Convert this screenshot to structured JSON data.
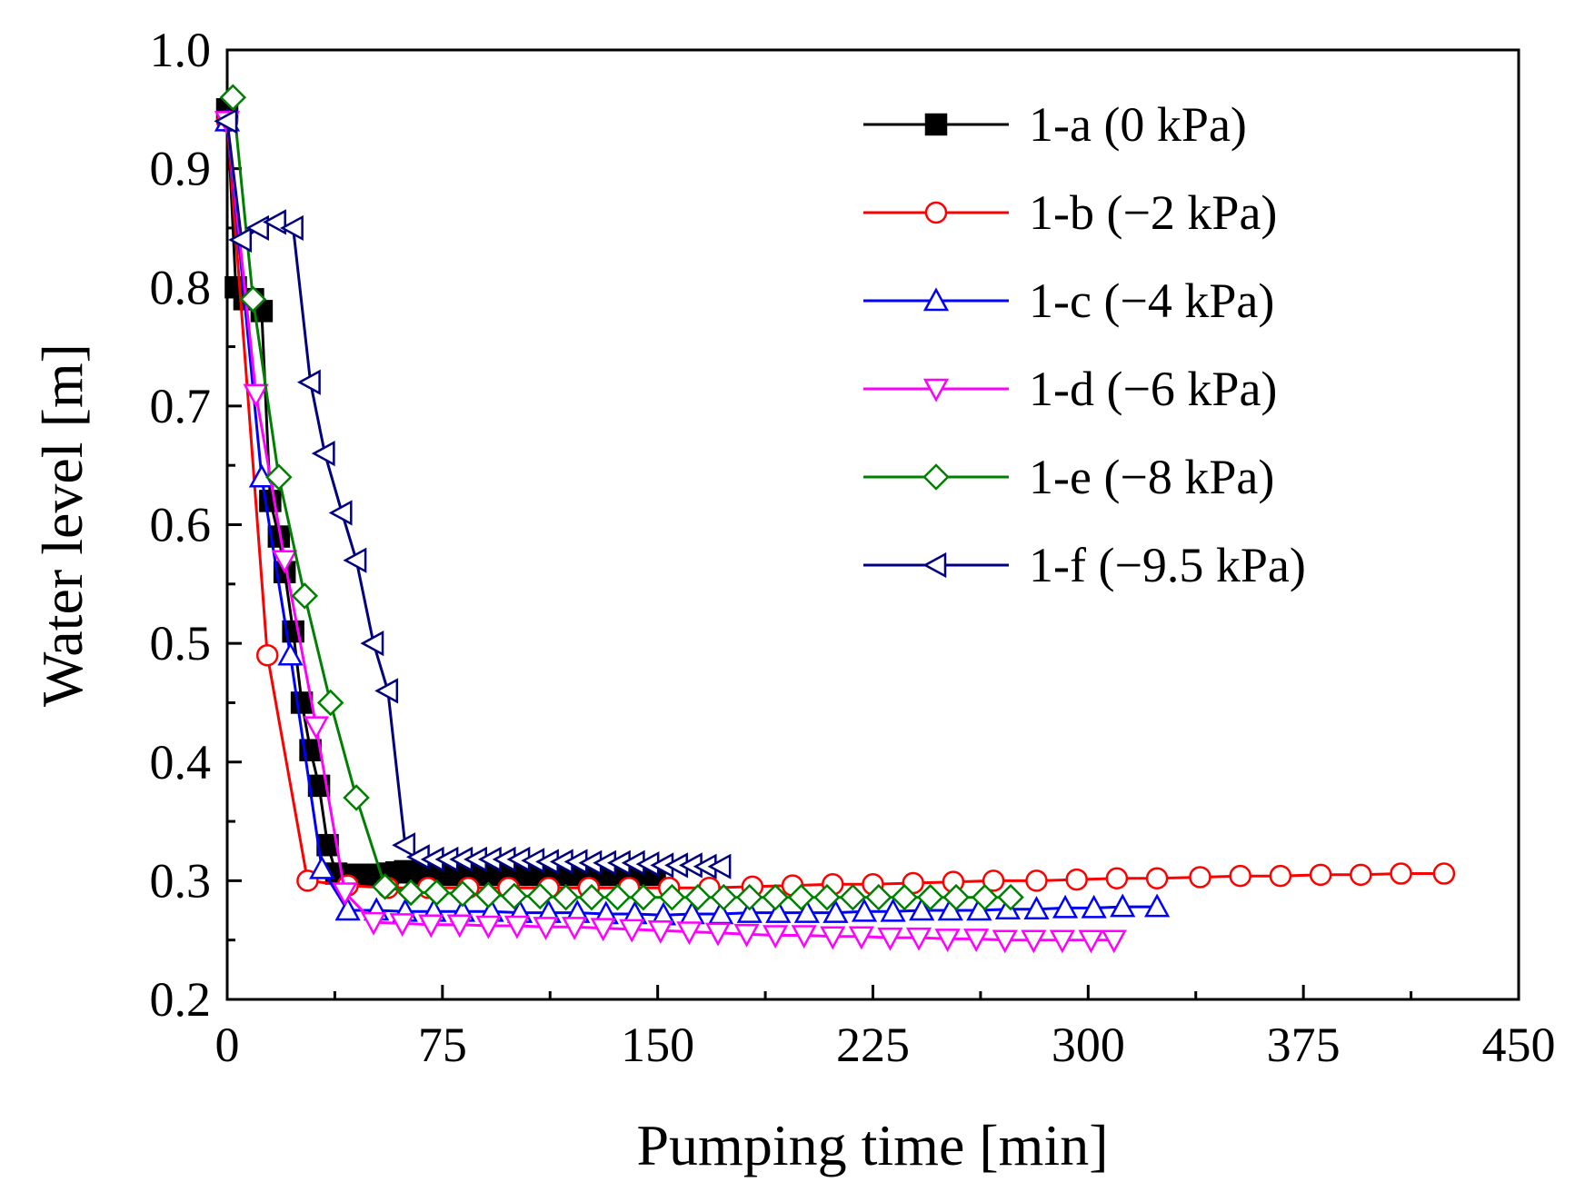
{
  "chart_data": {
    "type": "line",
    "title": "",
    "xlabel": "Pumping time [min]",
    "ylabel": "Water level [m]",
    "xlim": [
      0,
      450
    ],
    "ylim": [
      0.2,
      1.0
    ],
    "xticks": [
      0,
      75,
      150,
      225,
      300,
      375,
      450
    ],
    "xtick_labels": [
      "0",
      "75",
      "150",
      "225",
      "300",
      "375",
      "450"
    ],
    "yticks": [
      0.2,
      0.3,
      0.4,
      0.5,
      0.6,
      0.7,
      0.8,
      0.9,
      1.0
    ],
    "ytick_labels": [
      "0.2",
      "0.3",
      "0.4",
      "0.5",
      "0.6",
      "0.7",
      "0.8",
      "0.9",
      "1.0"
    ],
    "grid": false,
    "legend_position": "top-right",
    "series": [
      {
        "name": "1-a (0 kPa)",
        "color": "#000000",
        "marker": "square-filled",
        "x": [
          0,
          3,
          6,
          9,
          12,
          15,
          18,
          20,
          23,
          26,
          29,
          32,
          35,
          38,
          41,
          44,
          47,
          50,
          53,
          56,
          59,
          62,
          65,
          68,
          71,
          74,
          77,
          80,
          83,
          86,
          89,
          92,
          95,
          98,
          101,
          104,
          107,
          110,
          113,
          116,
          119,
          122,
          125,
          128,
          131,
          134,
          137,
          140,
          143,
          146,
          149
        ],
        "y": [
          0.95,
          0.8,
          0.79,
          0.79,
          0.78,
          0.62,
          0.59,
          0.56,
          0.51,
          0.45,
          0.41,
          0.38,
          0.33,
          0.306,
          0.305,
          0.305,
          0.305,
          0.305,
          0.305,
          0.306,
          0.307,
          0.308,
          0.307,
          0.306,
          0.305,
          0.305,
          0.305,
          0.305,
          0.305,
          0.305,
          0.305,
          0.305,
          0.305,
          0.305,
          0.305,
          0.305,
          0.305,
          0.305,
          0.305,
          0.305,
          0.305,
          0.305,
          0.305,
          0.305,
          0.305,
          0.305,
          0.305,
          0.305,
          0.305,
          0.305,
          0.305
        ]
      },
      {
        "name": "1-b (−2 kPa)",
        "color": "#ff0000",
        "marker": "circle-open",
        "x": [
          0,
          14,
          28,
          42,
          56,
          70,
          84,
          98,
          112,
          126,
          140,
          154,
          168,
          183,
          197,
          211,
          225,
          239,
          253,
          267,
          282,
          296,
          310,
          324,
          339,
          353,
          367,
          381,
          395,
          409,
          424
        ],
        "y": [
          0.94,
          0.49,
          0.3,
          0.296,
          0.294,
          0.294,
          0.294,
          0.294,
          0.294,
          0.294,
          0.294,
          0.294,
          0.294,
          0.295,
          0.296,
          0.297,
          0.297,
          0.298,
          0.299,
          0.3,
          0.3,
          0.301,
          0.302,
          0.302,
          0.303,
          0.304,
          0.304,
          0.305,
          0.305,
          0.306,
          0.306
        ]
      },
      {
        "name": "1-c (−4 kPa)",
        "color": "#0000ff",
        "marker": "triangle-up-open",
        "x": [
          0,
          12,
          22,
          33,
          42,
          52,
          62,
          72,
          82,
          92,
          102,
          112,
          122,
          132,
          142,
          152,
          162,
          172,
          182,
          192,
          202,
          212,
          222,
          232,
          242,
          252,
          262,
          272,
          282,
          292,
          302,
          312,
          324
        ],
        "y": [
          0.94,
          0.64,
          0.49,
          0.31,
          0.275,
          0.275,
          0.274,
          0.274,
          0.274,
          0.274,
          0.273,
          0.273,
          0.273,
          0.272,
          0.272,
          0.271,
          0.272,
          0.272,
          0.273,
          0.273,
          0.273,
          0.273,
          0.274,
          0.274,
          0.275,
          0.275,
          0.275,
          0.276,
          0.276,
          0.277,
          0.277,
          0.278,
          0.278
        ]
      },
      {
        "name": "1-d (−6 kPa)",
        "color": "#ff00ff",
        "marker": "triangle-down-open",
        "x": [
          0,
          10,
          20,
          31,
          41,
          51,
          61,
          71,
          81,
          91,
          101,
          111,
          121,
          131,
          141,
          151,
          161,
          171,
          181,
          191,
          201,
          211,
          221,
          231,
          241,
          251,
          261,
          271,
          281,
          291,
          301,
          309
        ],
        "y": [
          0.94,
          0.71,
          0.57,
          0.43,
          0.29,
          0.265,
          0.264,
          0.263,
          0.263,
          0.262,
          0.262,
          0.261,
          0.261,
          0.26,
          0.259,
          0.258,
          0.257,
          0.256,
          0.255,
          0.254,
          0.254,
          0.253,
          0.253,
          0.252,
          0.252,
          0.251,
          0.251,
          0.25,
          0.25,
          0.25,
          0.25,
          0.25
        ]
      },
      {
        "name": "1-e (−8 kPa)",
        "color": "#008000",
        "marker": "diamond-open",
        "x": [
          2,
          9,
          18,
          27,
          36,
          45,
          55,
          64,
          73,
          82,
          91,
          100,
          109,
          118,
          127,
          136,
          145,
          155,
          164,
          173,
          182,
          191,
          200,
          209,
          218,
          227,
          236,
          245,
          254,
          264,
          273
        ],
        "y": [
          0.96,
          0.79,
          0.64,
          0.54,
          0.45,
          0.37,
          0.295,
          0.29,
          0.29,
          0.289,
          0.288,
          0.287,
          0.287,
          0.286,
          0.286,
          0.286,
          0.286,
          0.286,
          0.286,
          0.286,
          0.286,
          0.286,
          0.286,
          0.286,
          0.286,
          0.286,
          0.286,
          0.286,
          0.286,
          0.286,
          0.286
        ]
      },
      {
        "name": "1-f (−9.5 kPa)",
        "color": "#000080",
        "marker": "triangle-left-open",
        "x": [
          0,
          5,
          11,
          17,
          23,
          29,
          34,
          40,
          45,
          51,
          56,
          62,
          67,
          72,
          77,
          82,
          87,
          92,
          97,
          102,
          107,
          112,
          117,
          122,
          127,
          132,
          137,
          142,
          147,
          152,
          157,
          162,
          167,
          172
        ],
        "y": [
          0.94,
          0.84,
          0.85,
          0.855,
          0.85,
          0.72,
          0.66,
          0.61,
          0.57,
          0.5,
          0.46,
          0.33,
          0.32,
          0.318,
          0.318,
          0.318,
          0.318,
          0.318,
          0.318,
          0.318,
          0.317,
          0.316,
          0.316,
          0.316,
          0.315,
          0.315,
          0.315,
          0.315,
          0.314,
          0.313,
          0.313,
          0.313,
          0.312,
          0.312
        ]
      }
    ]
  }
}
